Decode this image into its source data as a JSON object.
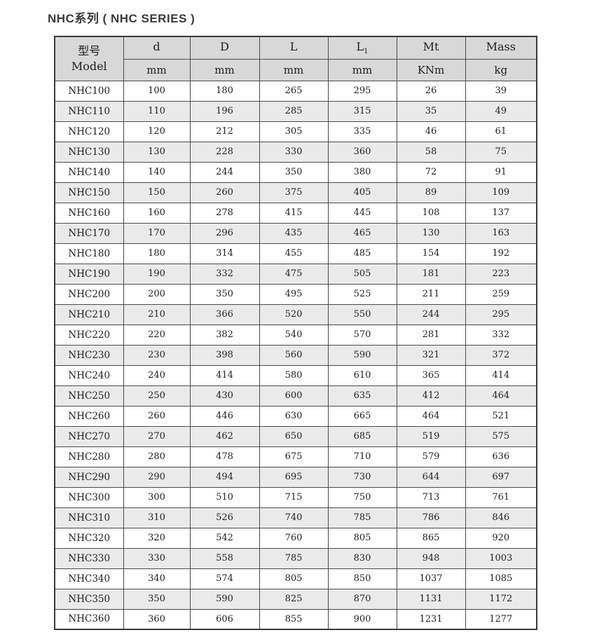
{
  "title": "NHC系列 ( NHC SERIES )",
  "colors": {
    "header_bg": "#d8d8d8",
    "row_alt_bg": "#eaeaea",
    "border": "#4a4a4a",
    "outer_border": "#3a3a3a",
    "text": "#1f1f1f",
    "title_color": "#3b3b3b"
  },
  "table": {
    "model_header": {
      "zh": "型号",
      "en": "Model"
    },
    "columns": [
      {
        "name": "d",
        "sub": "",
        "unit": "mm"
      },
      {
        "name": "D",
        "sub": "",
        "unit": "mm"
      },
      {
        "name": "L",
        "sub": "",
        "unit": "mm"
      },
      {
        "name": "L",
        "sub": "1",
        "unit": "mm"
      },
      {
        "name": "Mt",
        "sub": "",
        "unit": "KNm"
      },
      {
        "name": "Mass",
        "sub": "",
        "unit": "kg"
      }
    ],
    "rows": [
      [
        "NHC100",
        "100",
        "180",
        "265",
        "295",
        "26",
        "39"
      ],
      [
        "NHC110",
        "110",
        "196",
        "285",
        "315",
        "35",
        "49"
      ],
      [
        "NHC120",
        "120",
        "212",
        "305",
        "335",
        "46",
        "61"
      ],
      [
        "NHC130",
        "130",
        "228",
        "330",
        "360",
        "58",
        "75"
      ],
      [
        "NHC140",
        "140",
        "244",
        "350",
        "380",
        "72",
        "91"
      ],
      [
        "NHC150",
        "150",
        "260",
        "375",
        "405",
        "89",
        "109"
      ],
      [
        "NHC160",
        "160",
        "278",
        "415",
        "445",
        "108",
        "137"
      ],
      [
        "NHC170",
        "170",
        "296",
        "435",
        "465",
        "130",
        "163"
      ],
      [
        "NHC180",
        "180",
        "314",
        "455",
        "485",
        "154",
        "192"
      ],
      [
        "NHC190",
        "190",
        "332",
        "475",
        "505",
        "181",
        "223"
      ],
      [
        "NHC200",
        "200",
        "350",
        "495",
        "525",
        "211",
        "259"
      ],
      [
        "NHC210",
        "210",
        "366",
        "520",
        "550",
        "244",
        "295"
      ],
      [
        "NHC220",
        "220",
        "382",
        "540",
        "570",
        "281",
        "332"
      ],
      [
        "NHC230",
        "230",
        "398",
        "560",
        "590",
        "321",
        "372"
      ],
      [
        "NHC240",
        "240",
        "414",
        "580",
        "610",
        "365",
        "414"
      ],
      [
        "NHC250",
        "250",
        "430",
        "600",
        "635",
        "412",
        "464"
      ],
      [
        "NHC260",
        "260",
        "446",
        "630",
        "665",
        "464",
        "521"
      ],
      [
        "NHC270",
        "270",
        "462",
        "650",
        "685",
        "519",
        "575"
      ],
      [
        "NHC280",
        "280",
        "478",
        "675",
        "710",
        "579",
        "636"
      ],
      [
        "NHC290",
        "290",
        "494",
        "695",
        "730",
        "644",
        "697"
      ],
      [
        "NHC300",
        "300",
        "510",
        "715",
        "750",
        "713",
        "761"
      ],
      [
        "NHC310",
        "310",
        "526",
        "740",
        "785",
        "786",
        "846"
      ],
      [
        "NHC320",
        "320",
        "542",
        "760",
        "805",
        "865",
        "920"
      ],
      [
        "NHC330",
        "330",
        "558",
        "785",
        "830",
        "948",
        "1003"
      ],
      [
        "NHC340",
        "340",
        "574",
        "805",
        "850",
        "1037",
        "1085"
      ],
      [
        "NHC350",
        "350",
        "590",
        "825",
        "870",
        "1131",
        "1172"
      ],
      [
        "NHC360",
        "360",
        "606",
        "855",
        "900",
        "1231",
        "1277"
      ]
    ]
  }
}
